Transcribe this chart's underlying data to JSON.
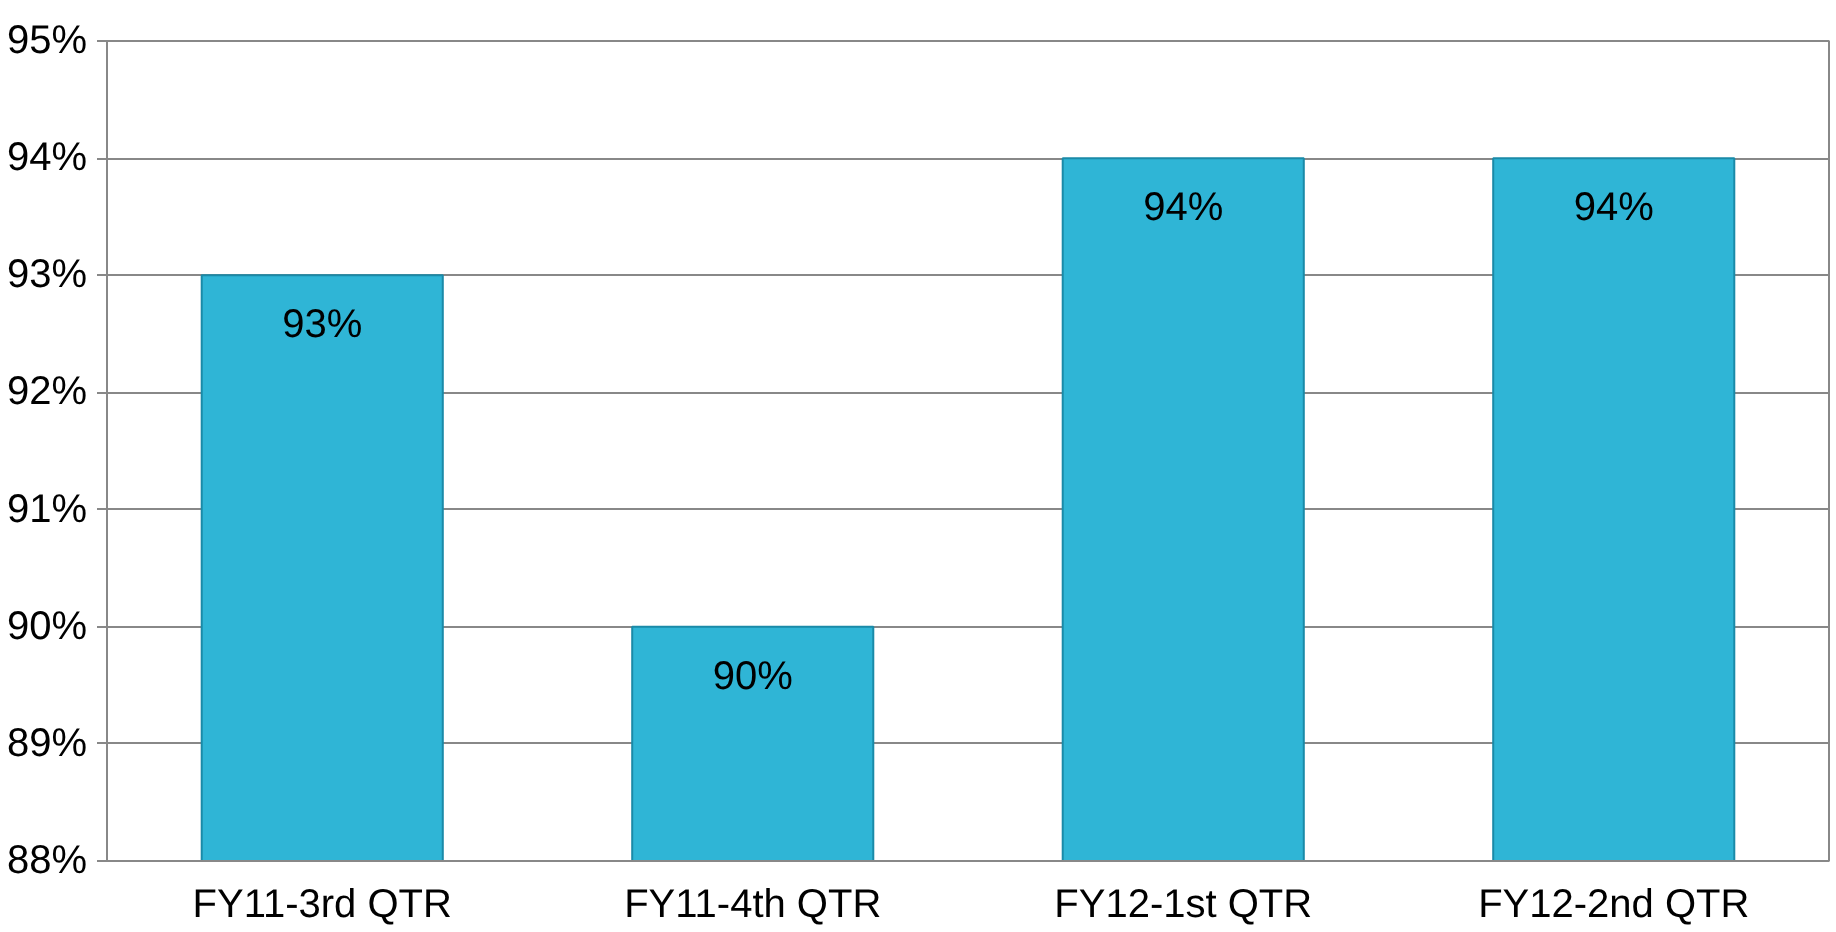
{
  "chart_data": {
    "type": "bar",
    "categories": [
      "FY11-3rd QTR",
      "FY11-4th QTR",
      "FY12-1st QTR",
      "FY12-2nd QTR"
    ],
    "values": [
      93,
      90,
      94,
      94
    ],
    "value_labels": [
      "93%",
      "90%",
      "94%",
      "94%"
    ],
    "color": "#2fb5d6",
    "ylim": [
      88,
      95
    ],
    "yticks": [
      {
        "value": 88,
        "label": "88%"
      },
      {
        "value": 89,
        "label": "89%"
      },
      {
        "value": 90,
        "label": "90%"
      },
      {
        "value": 91,
        "label": "91%"
      },
      {
        "value": 92,
        "label": "92%"
      },
      {
        "value": 93,
        "label": "93%"
      },
      {
        "value": 94,
        "label": "94%"
      },
      {
        "value": 95,
        "label": "95%"
      }
    ],
    "grid": "y"
  }
}
